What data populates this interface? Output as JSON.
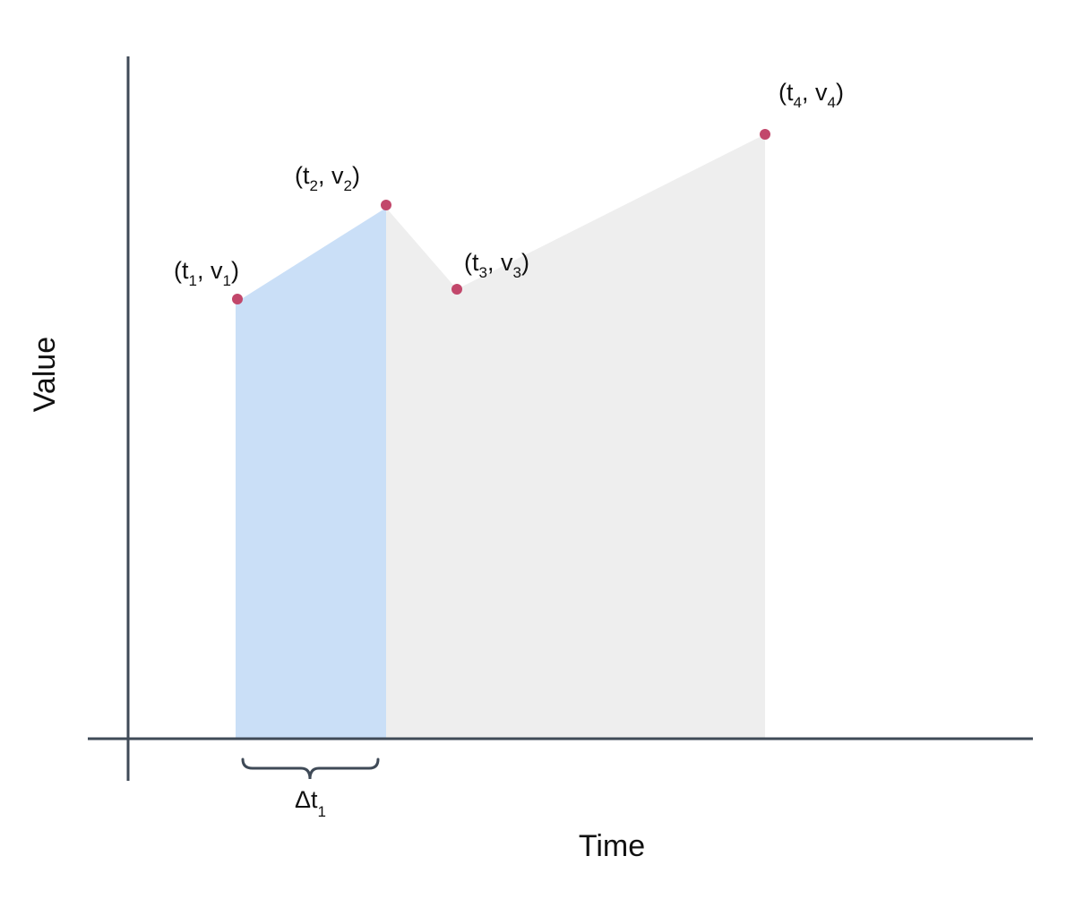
{
  "axes": {
    "x_label": "Time",
    "y_label": "Value"
  },
  "colors": {
    "axis": "#3f4a57",
    "point": "#c2476b",
    "highlight_fill": "#cadff7",
    "area_fill": "#eeeeee"
  },
  "points": [
    {
      "open": "(t",
      "t_sub": "1",
      "mid": ", v",
      "v_sub": "1",
      "close": ")"
    },
    {
      "open": "(t",
      "t_sub": "2",
      "mid": ", v",
      "v_sub": "2",
      "close": ")"
    },
    {
      "open": "(t",
      "t_sub": "3",
      "mid": ", v",
      "v_sub": "3",
      "close": ")"
    },
    {
      "open": "(t",
      "t_sub": "4",
      "mid": ", v",
      "v_sub": "4",
      "close": ")"
    }
  ],
  "interval": {
    "symbol": "Δt",
    "sub": "1"
  }
}
